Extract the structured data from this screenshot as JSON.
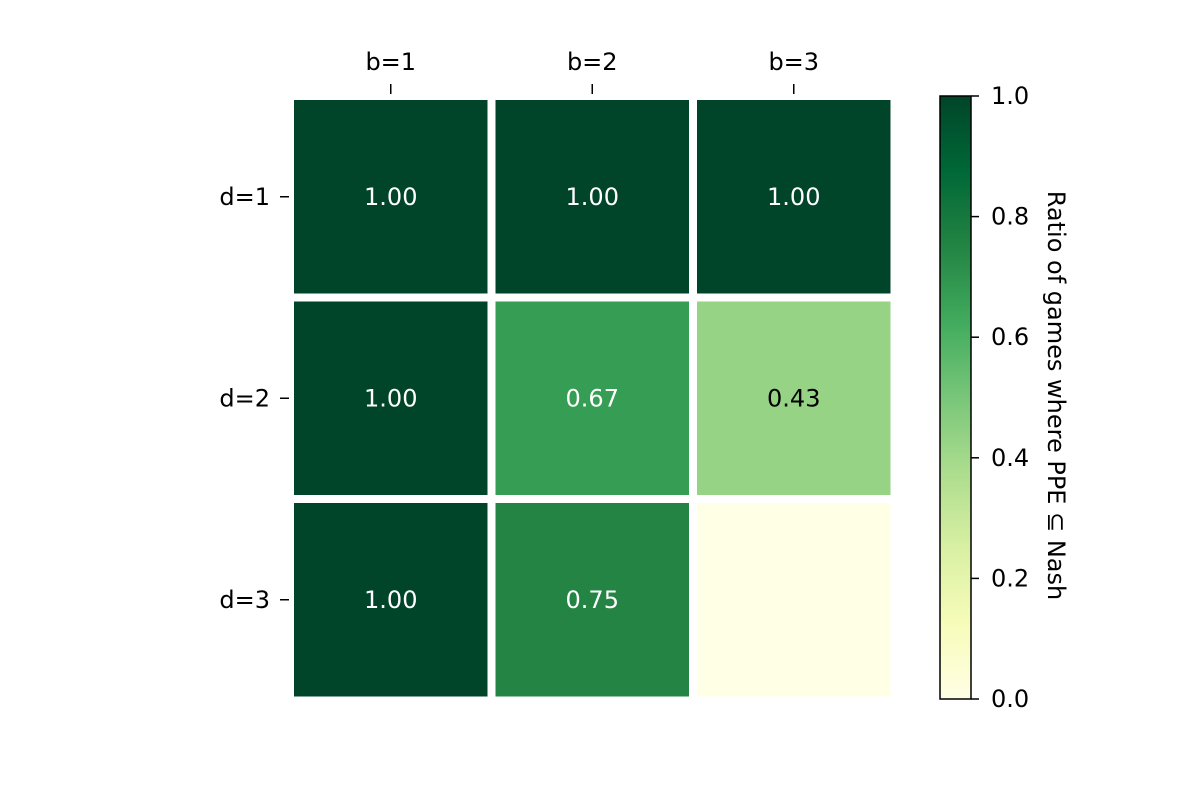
{
  "chart_data": {
    "type": "heatmap",
    "x_categories": [
      "b=1",
      "b=2",
      "b=3"
    ],
    "y_categories": [
      "d=1",
      "d=2",
      "d=3"
    ],
    "values": [
      [
        1.0,
        1.0,
        1.0
      ],
      [
        1.0,
        0.67,
        0.43
      ],
      [
        1.0,
        0.75,
        null
      ]
    ],
    "cell_labels": [
      [
        "1.00",
        "1.00",
        "1.00"
      ],
      [
        "1.00",
        "0.67",
        "0.43"
      ],
      [
        "1.00",
        "0.75",
        ""
      ]
    ],
    "x_axis_position": "top",
    "colormap": "YlGn",
    "missing_color": "#ffffe5",
    "colorbar": {
      "label": "Ratio of games where PPE ⊆ Nash",
      "range": [
        0.0,
        1.0
      ],
      "ticks": [
        "0.0",
        "0.2",
        "0.4",
        "0.6",
        "0.8",
        "1.0"
      ],
      "stops": [
        {
          "v": 0.0,
          "color": "#ffffe5"
        },
        {
          "v": 0.125,
          "color": "#f7fcb9"
        },
        {
          "v": 0.25,
          "color": "#d9f0a3"
        },
        {
          "v": 0.375,
          "color": "#addd8e"
        },
        {
          "v": 0.5,
          "color": "#78c679"
        },
        {
          "v": 0.625,
          "color": "#41ab5d"
        },
        {
          "v": 0.75,
          "color": "#238443"
        },
        {
          "v": 0.875,
          "color": "#006837"
        },
        {
          "v": 1.0,
          "color": "#004529"
        }
      ]
    },
    "text_colors": {
      "light": "#ffffff",
      "dark": "#000000"
    },
    "grid": false
  }
}
